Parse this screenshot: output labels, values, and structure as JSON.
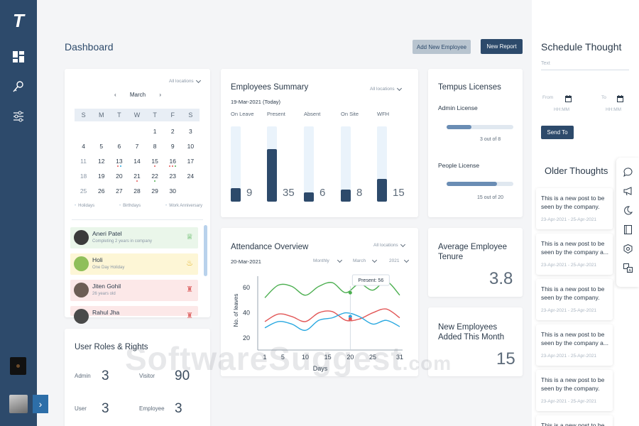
{
  "sidebar": {
    "logo": "T",
    "nav_icons": [
      "dashboard-icon",
      "key-icon",
      "sliders-icon"
    ],
    "expand_glyph": "›"
  },
  "header": {
    "title": "Dashboard",
    "add_employee_label": "Add New Employee",
    "new_report_label": "New Report"
  },
  "calendar": {
    "location_filter": "All locations",
    "month": "March",
    "prev_glyph": "‹",
    "next_glyph": "›",
    "weekdays": [
      "S",
      "M",
      "T",
      "W",
      "T",
      "F",
      "S"
    ],
    "weeks": [
      [
        "",
        "",
        "",
        "",
        "1",
        "2",
        "3"
      ],
      [
        "4",
        "5",
        "6",
        "7",
        "8",
        "9",
        "10"
      ],
      [
        "11",
        "12",
        "13",
        "14",
        "15",
        "16",
        "17"
      ],
      [
        "18",
        "19",
        "20",
        "21",
        "22",
        "23",
        "24"
      ],
      [
        "25",
        "26",
        "27",
        "28",
        "29",
        "30",
        ""
      ]
    ],
    "today": "16",
    "legend": [
      "Holidays",
      "Birthdays",
      "Work Anniversary"
    ],
    "events": [
      {
        "name": "Aneri Patel",
        "subtitle": "Completing 2 years in company",
        "bg": "#eaf6ea",
        "icon": "award-icon"
      },
      {
        "name": "Holi",
        "subtitle": "One Day Holiday",
        "bg": "#fdf6d6",
        "icon": "gift-icon"
      },
      {
        "name": "Jiten Gohil",
        "subtitle": "26 years old",
        "bg": "#fce8e8",
        "icon": "cake-icon"
      },
      {
        "name": "Rahul Jha",
        "subtitle": "",
        "bg": "#fce8e8",
        "icon": "cake-icon"
      }
    ]
  },
  "user_roles": {
    "title": "User Roles & Rights",
    "roles": [
      {
        "label": "Admin",
        "value": "3"
      },
      {
        "label": "Visitor",
        "value": "90"
      },
      {
        "label": "User",
        "value": "3"
      },
      {
        "label": "Employee",
        "value": "3"
      }
    ]
  },
  "employees_summary": {
    "title": "Employees Summary",
    "date": "19-Mar-2021 (Today)",
    "location_filter": "All locations",
    "bars": [
      {
        "label": "On Leave",
        "value": 9
      },
      {
        "label": "Present",
        "value": 35
      },
      {
        "label": "Absent",
        "value": 6
      },
      {
        "label": "On Site",
        "value": 8
      },
      {
        "label": "WFH",
        "value": 15
      }
    ],
    "max": 50
  },
  "licenses": {
    "title": "Tempus Licenses",
    "items": [
      {
        "label": "Admin License",
        "used": 3,
        "total": 8,
        "text": "3 out of 8"
      },
      {
        "label": "People License",
        "used": 15,
        "total": 20,
        "text": "15 out of 20"
      }
    ]
  },
  "attendance": {
    "title": "Attendance Overview",
    "date": "20-Mar-2021",
    "location_filter": "All locations",
    "period": "Monthly",
    "month": "March",
    "year": "2021",
    "tooltip": "Present: 56"
  },
  "chart_data": {
    "type": "line",
    "xlabel": "Days",
    "ylabel": "No. of leaves",
    "x_ticks": [
      1,
      5,
      10,
      15,
      20,
      25,
      31
    ],
    "y_ticks": [
      20,
      40,
      60
    ],
    "xlim": [
      1,
      31
    ],
    "ylim": [
      16,
      68
    ],
    "grid": false,
    "series": [
      {
        "color": "#4caf50",
        "x": [
          1,
          4,
          7,
          10,
          13,
          16,
          19,
          22,
          25,
          28,
          31
        ],
        "y": [
          52,
          62,
          61,
          54,
          61,
          64,
          56,
          63,
          58,
          65,
          54
        ]
      },
      {
        "color": "#e25656",
        "x": [
          1,
          4,
          7,
          10,
          13,
          16,
          19,
          22,
          25,
          28,
          31
        ],
        "y": [
          33,
          39,
          37,
          33,
          40,
          41,
          34,
          35,
          40,
          43,
          36
        ]
      },
      {
        "color": "#29a8e0",
        "x": [
          1,
          4,
          7,
          10,
          13,
          16,
          19,
          22,
          25,
          28,
          31
        ],
        "y": [
          28,
          33,
          31,
          26,
          34,
          36,
          40,
          37,
          31,
          34,
          29
        ]
      }
    ],
    "highlight": {
      "x": 20,
      "y": 56
    }
  },
  "avg_tenure": {
    "title": "Average Employee Tenure",
    "value": "3.8"
  },
  "new_employees": {
    "title": "New Employees Added This Month",
    "value": "15"
  },
  "schedule": {
    "title": "Schedule Thought",
    "text_placeholder": "Text",
    "from_label": "From",
    "to_label": "To",
    "from_value": "HH:MM",
    "to_value": "HH:MM",
    "send_label": "Send To"
  },
  "older_thoughts": {
    "title": "Older Thoughts",
    "items": [
      {
        "text": "This is a new post to be seen by the company.",
        "dates": "23-Apr-2021 - 25-Apr-2021"
      },
      {
        "text": "This is a new post to be seen by the company a...",
        "dates": "23-Apr-2021 - 25-Apr-2021"
      },
      {
        "text": "This is a new post to be seen by the company.",
        "dates": "23-Apr-2021 - 25-Apr-2021"
      },
      {
        "text": "This is a new post to be seen by the company a...",
        "dates": "23-Apr-2021 - 25-Apr-2021"
      },
      {
        "text": "This is a new post to be seen by the company.",
        "dates": "23-Apr-2021 - 25-Apr-2021"
      },
      {
        "text": "This is a new post to be",
        "dates": ""
      }
    ]
  },
  "toolstrip": [
    "chat-icon",
    "megaphone-icon",
    "moon-icon",
    "book-icon",
    "badge-icon",
    "translate-icon"
  ],
  "watermark": {
    "main": "SoftwareSuggest",
    "suffix": ".com"
  }
}
